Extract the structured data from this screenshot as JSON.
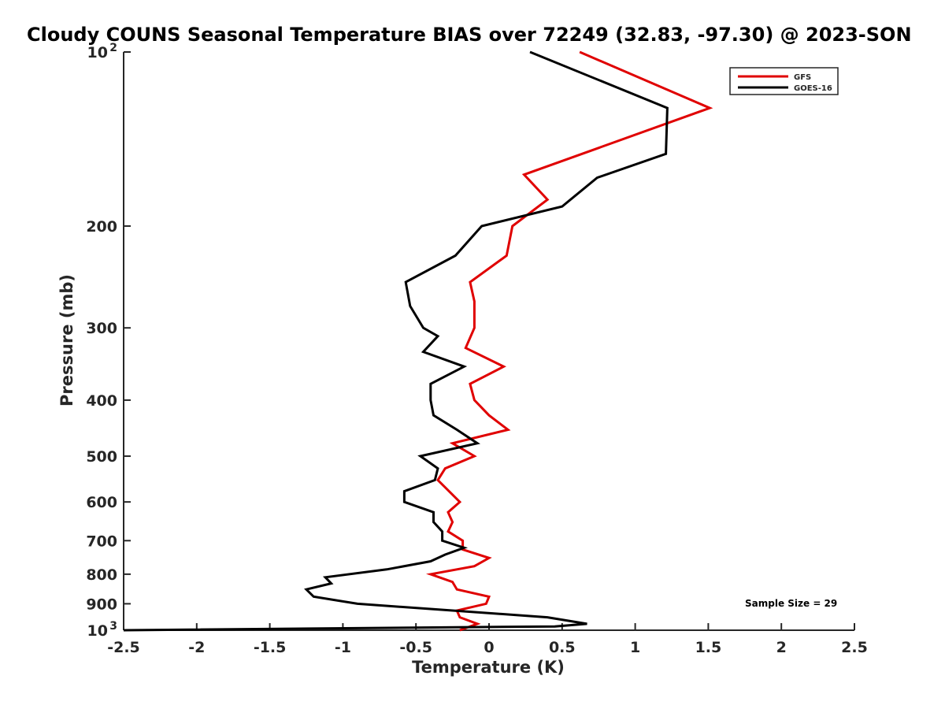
{
  "title": "Cloudy COUNS Seasonal Temperature BIAS over 72249 (32.83, -97.30) @ 2023-SON",
  "annotation": "Sample Size = 29",
  "chart_data": {
    "type": "line",
    "title": "Cloudy COUNS Seasonal Temperature BIAS over 72249 (32.83, -97.30) @ 2023-SON",
    "xlabel": "Temperature (K)",
    "ylabel": "Pressure (mb)",
    "xlim": [
      -2.5,
      2.5
    ],
    "ylim": [
      1000,
      100
    ],
    "yscale": "log",
    "y_reversed": true,
    "grid": false,
    "legend_position": "top-right",
    "x_ticks": [
      "-2.5",
      "-2",
      "-1.5",
      "-1",
      "-0.5",
      "0",
      "0.5",
      "1",
      "1.5",
      "2",
      "2.5"
    ],
    "x_tick_values": [
      -2.5,
      -2,
      -1.5,
      -1,
      -0.5,
      0,
      0.5,
      1,
      1.5,
      2,
      2.5
    ],
    "y_ticks": [
      {
        "value": 100,
        "label": "10",
        "exp": "2"
      },
      {
        "value": 200,
        "label": "200"
      },
      {
        "value": 300,
        "label": "300"
      },
      {
        "value": 400,
        "label": "400"
      },
      {
        "value": 500,
        "label": "500"
      },
      {
        "value": 600,
        "label": "600"
      },
      {
        "value": 700,
        "label": "700"
      },
      {
        "value": 800,
        "label": "800"
      },
      {
        "value": 900,
        "label": "900"
      },
      {
        "value": 1000,
        "label": "10",
        "exp": "3"
      }
    ],
    "series": [
      {
        "name": "GFS",
        "color": "#e00000",
        "points": [
          [
            0.62,
            100
          ],
          [
            1.51,
            125
          ],
          [
            0.24,
            163
          ],
          [
            0.4,
            180
          ],
          [
            0.16,
            200
          ],
          [
            0.12,
            225
          ],
          [
            -0.13,
            250
          ],
          [
            -0.1,
            270
          ],
          [
            -0.1,
            300
          ],
          [
            -0.16,
            325
          ],
          [
            0.1,
            350
          ],
          [
            -0.13,
            375
          ],
          [
            -0.1,
            400
          ],
          [
            0.0,
            425
          ],
          [
            0.13,
            450
          ],
          [
            -0.25,
            475
          ],
          [
            -0.1,
            500
          ],
          [
            -0.3,
            525
          ],
          [
            -0.35,
            550
          ],
          [
            -0.2,
            600
          ],
          [
            -0.28,
            625
          ],
          [
            -0.25,
            650
          ],
          [
            -0.28,
            675
          ],
          [
            -0.18,
            700
          ],
          [
            -0.18,
            725
          ],
          [
            0.0,
            750
          ],
          [
            -0.1,
            775
          ],
          [
            -0.4,
            800
          ],
          [
            -0.25,
            825
          ],
          [
            -0.22,
            850
          ],
          [
            0.0,
            875
          ],
          [
            -0.02,
            900
          ],
          [
            -0.22,
            925
          ],
          [
            -0.2,
            950
          ],
          [
            -0.08,
            975
          ],
          [
            -0.2,
            1000
          ]
        ]
      },
      {
        "name": "GOES-16",
        "color": "#000000",
        "points": [
          [
            0.28,
            100
          ],
          [
            1.22,
            125
          ],
          [
            1.21,
            150
          ],
          [
            0.74,
            165
          ],
          [
            0.5,
            185
          ],
          [
            -0.05,
            200
          ],
          [
            -0.23,
            225
          ],
          [
            -0.57,
            250
          ],
          [
            -0.54,
            275
          ],
          [
            -0.45,
            300
          ],
          [
            -0.35,
            310
          ],
          [
            -0.45,
            330
          ],
          [
            -0.17,
            350
          ],
          [
            -0.4,
            375
          ],
          [
            -0.4,
            400
          ],
          [
            -0.38,
            425
          ],
          [
            -0.22,
            450
          ],
          [
            -0.08,
            475
          ],
          [
            -0.47,
            500
          ],
          [
            -0.35,
            525
          ],
          [
            -0.37,
            550
          ],
          [
            -0.58,
            575
          ],
          [
            -0.58,
            600
          ],
          [
            -0.38,
            625
          ],
          [
            -0.38,
            650
          ],
          [
            -0.32,
            675
          ],
          [
            -0.32,
            700
          ],
          [
            -0.17,
            720
          ],
          [
            -0.3,
            740
          ],
          [
            -0.4,
            760
          ],
          [
            -0.7,
            785
          ],
          [
            -1.12,
            810
          ],
          [
            -1.08,
            830
          ],
          [
            -1.25,
            850
          ],
          [
            -1.2,
            875
          ],
          [
            -0.9,
            900
          ],
          [
            0.4,
            950
          ],
          [
            0.67,
            975
          ],
          [
            0.45,
            985
          ],
          [
            -2.5,
            1000
          ]
        ]
      }
    ]
  }
}
